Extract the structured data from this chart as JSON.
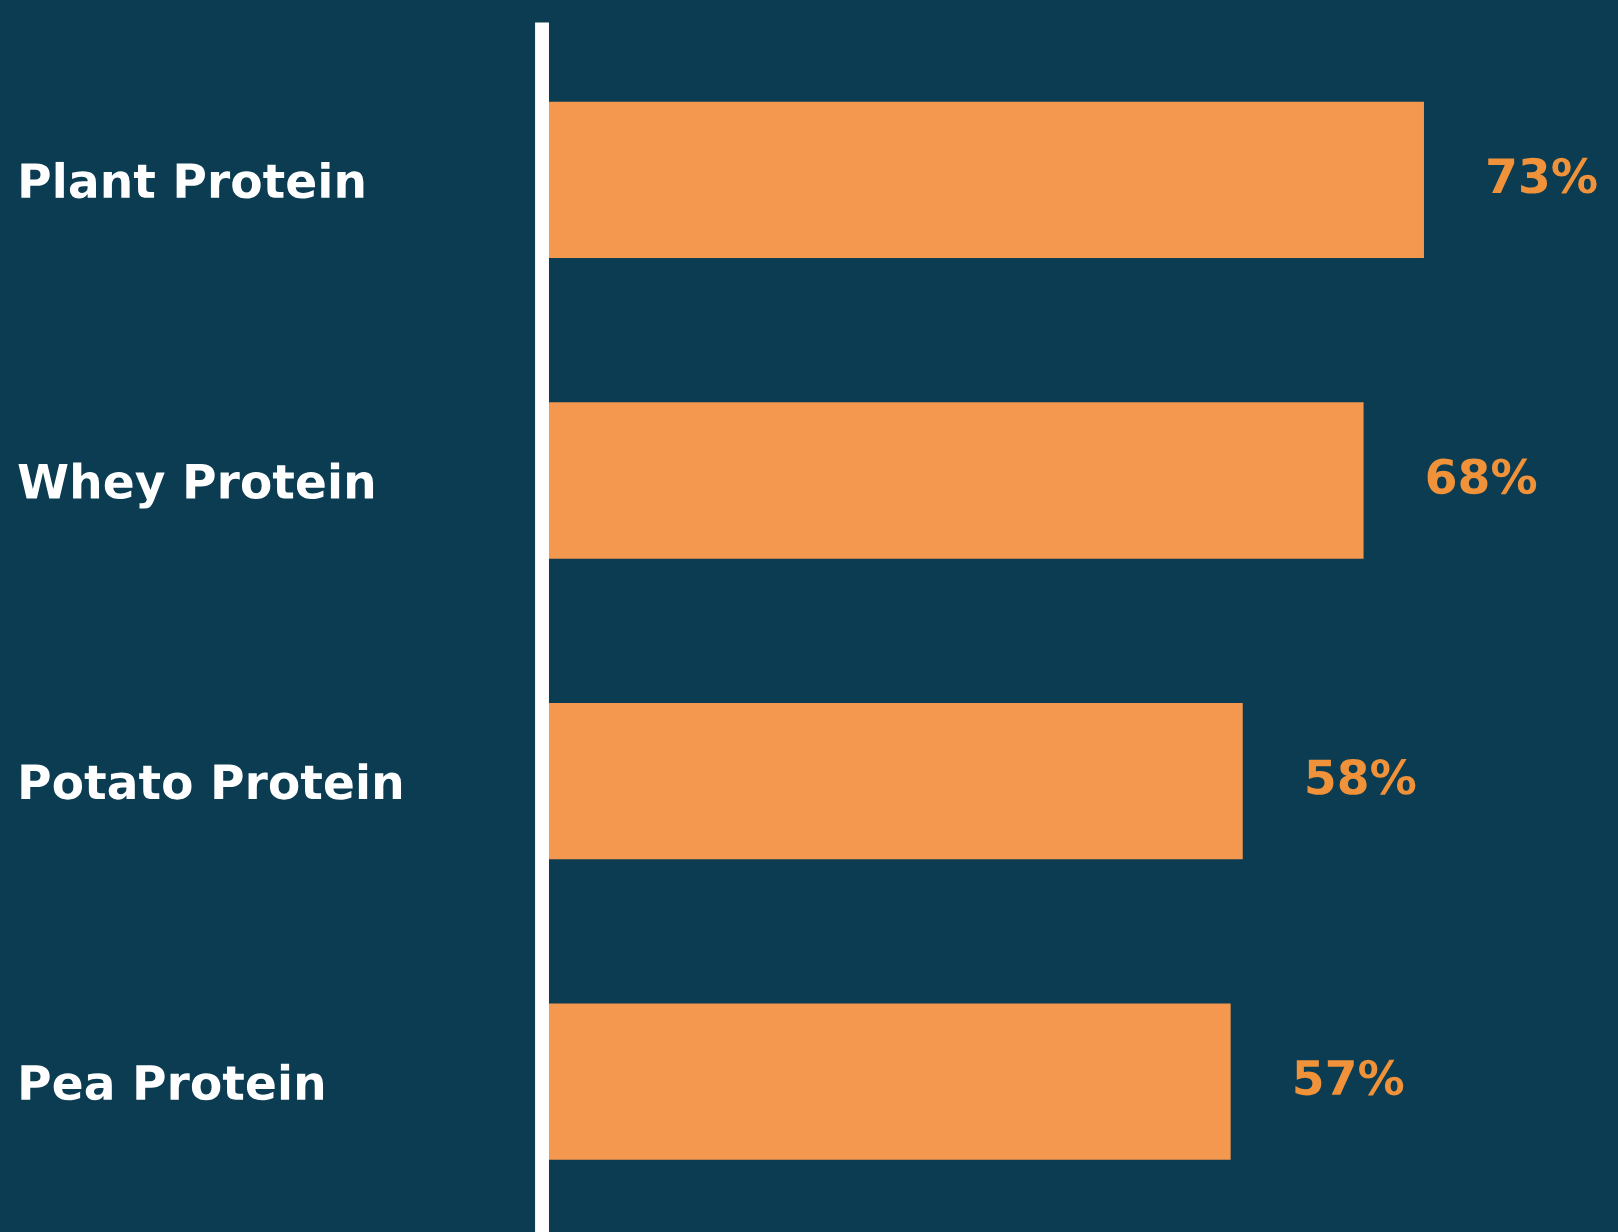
{
  "chart_data": {
    "type": "bar",
    "orientation": "horizontal",
    "categories": [
      "Plant Protein",
      "Whey Protein",
      "Potato Protein",
      "Pea Protein"
    ],
    "values": [
      73,
      68,
      58,
      57
    ],
    "value_labels": [
      "73%",
      "68%",
      "58%",
      "57%"
    ],
    "color": "#f4974f",
    "grid": false,
    "legend": false,
    "tick_labels": "y"
  }
}
